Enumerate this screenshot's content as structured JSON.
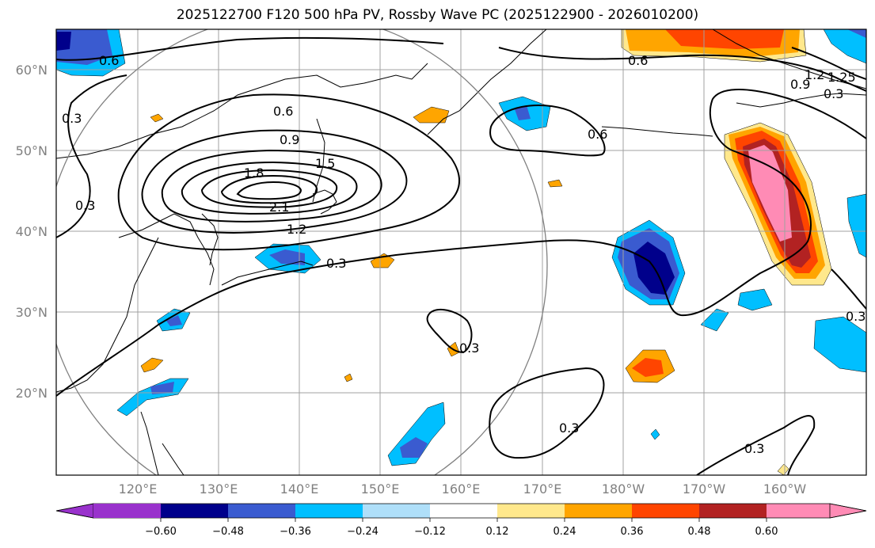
{
  "title": "2025122700 F120 500 hPa PV, Rossby Wave PC (2025122900 - 2026010200)",
  "lat_labels": [
    "60°N",
    "50°N",
    "40°N",
    "30°N",
    "20°N"
  ],
  "lon_labels": [
    "120°E",
    "130°E",
    "140°E",
    "150°E",
    "160°E",
    "170°E",
    "180°W",
    "170°W",
    "160°W"
  ],
  "contour_labels": [
    "0.6",
    "0.6",
    "0.9",
    "1.5",
    "1.8",
    "2.1",
    "1.2",
    "0.3",
    "0.3",
    "0.3",
    "0.6",
    "0.6",
    "0.3",
    "0.3",
    "0.3",
    "0.3",
    "1.2",
    "0.9",
    "0.3",
    "1.25"
  ],
  "colorbar": {
    "ticks": [
      "−0.60",
      "−0.48",
      "−0.36",
      "−0.24",
      "−0.12",
      "0.12",
      "0.24",
      "0.36",
      "0.48",
      "0.60"
    ],
    "colors": [
      "#9932cc",
      "#00008b",
      "#3a5bd0",
      "#00bfff",
      "#afdff9",
      "#ffffff",
      "#ffe88c",
      "#ffa500",
      "#ff4500",
      "#b22222",
      "#ff8bb5"
    ]
  },
  "colors": {
    "grid": "#a0a0a0",
    "contour": "#000000",
    "circle": "#808080"
  }
}
